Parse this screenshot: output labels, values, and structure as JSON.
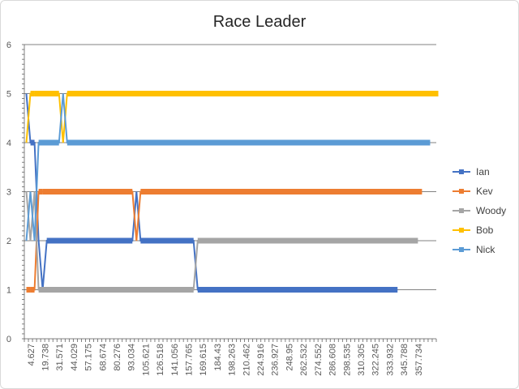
{
  "chart_data": {
    "type": "line",
    "title": "Race Leader",
    "xlabel": "",
    "ylabel": "",
    "ylim": [
      0,
      6
    ],
    "yticks": [
      0,
      1,
      2,
      3,
      4,
      5,
      6
    ],
    "grid": true,
    "legend": "right",
    "x_tick_labels": [
      "4.627",
      "19.738",
      "31.571",
      "44.029",
      "57.175",
      "68.674",
      "80.276",
      "93.034",
      "105.621",
      "126.518",
      "141.056",
      "157.765",
      "169.615",
      "184.43",
      "198.263",
      "210.462",
      "224.916",
      "236.927",
      "248.95",
      "262.532",
      "274.552",
      "286.608",
      "298.535",
      "310.305",
      "322.245",
      "333.932",
      "345.788",
      "357.734"
    ],
    "x_total_points": 101,
    "series": [
      {
        "name": "Ian",
        "color": "#4472C4",
        "x": [
          0,
          1,
          2,
          3,
          4,
          5,
          26,
          27,
          28,
          41,
          42,
          91
        ],
        "y": [
          5,
          4,
          4,
          2,
          1,
          2,
          2,
          3,
          2,
          2,
          1,
          1
        ]
      },
      {
        "name": "Kev",
        "color": "#ED7D31",
        "x": [
          0,
          1,
          2,
          3,
          4,
          26,
          27,
          28,
          97
        ],
        "y": [
          1,
          1,
          1,
          3,
          3,
          3,
          2,
          3,
          3
        ]
      },
      {
        "name": "Woody",
        "color": "#A5A5A5",
        "x": [
          0,
          1,
          2,
          3,
          41,
          42,
          96
        ],
        "y": [
          3,
          2,
          3,
          1,
          1,
          2,
          2
        ]
      },
      {
        "name": "Bob",
        "color": "#FFC000",
        "x": [
          0,
          1,
          2,
          8,
          9,
          10,
          101
        ],
        "y": [
          4,
          5,
          5,
          5,
          4,
          5,
          5
        ]
      },
      {
        "name": "Nick",
        "color": "#5B9BD5",
        "x": [
          0,
          1,
          2,
          3,
          8,
          9,
          10,
          99
        ],
        "y": [
          2,
          3,
          2,
          4,
          4,
          5,
          4,
          4
        ]
      }
    ]
  }
}
